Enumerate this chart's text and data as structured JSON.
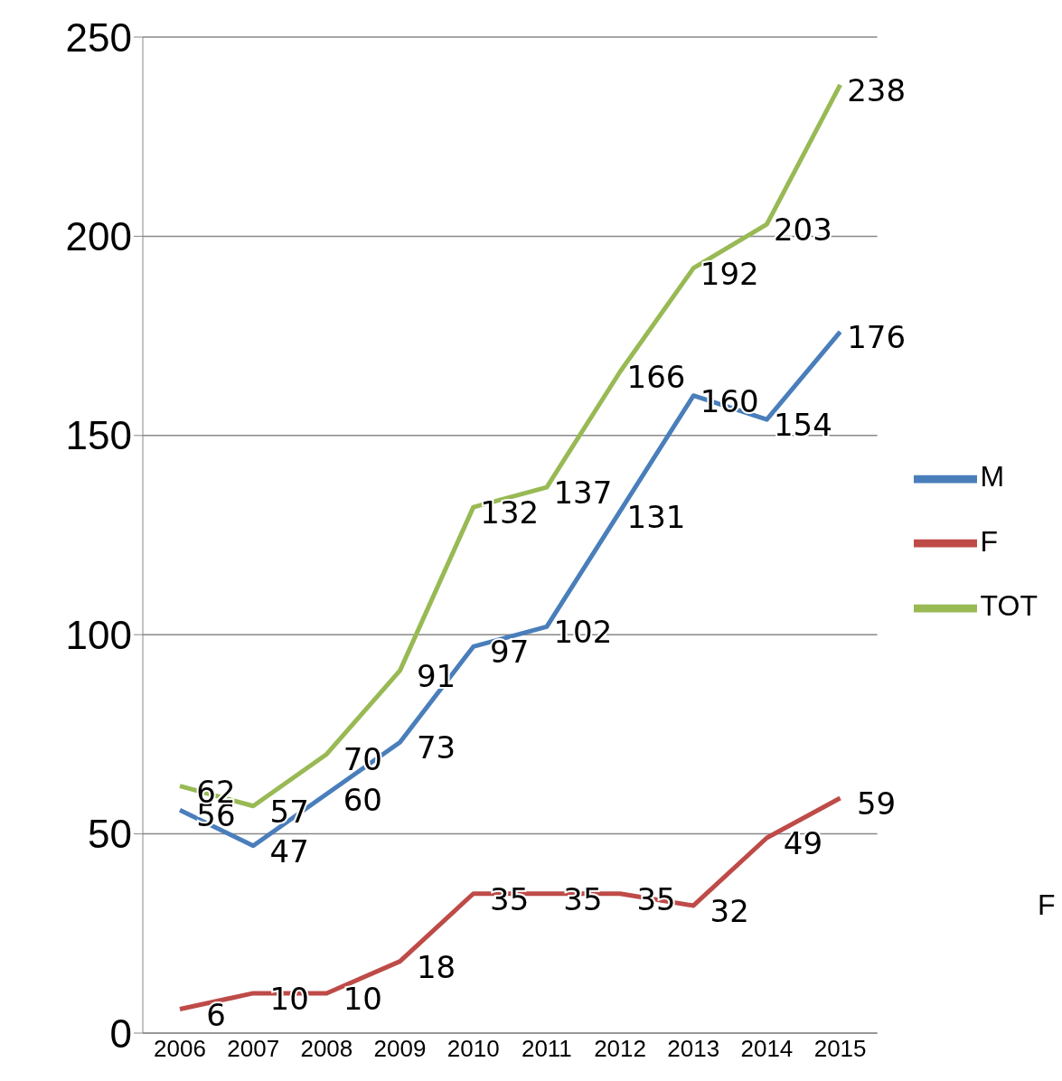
{
  "chart_data": {
    "type": "line",
    "categories": [
      "2006",
      "2007",
      "2008",
      "2009",
      "2010",
      "2011",
      "2012",
      "2013",
      "2014",
      "2015"
    ],
    "series": [
      {
        "name": "M",
        "color": "#4a7ebb",
        "values": [
          56,
          47,
          60,
          73,
          97,
          102,
          131,
          160,
          154,
          176
        ]
      },
      {
        "name": "F",
        "color": "#be4b48",
        "values": [
          6,
          10,
          10,
          18,
          35,
          35,
          35,
          32,
          49,
          59
        ]
      },
      {
        "name": "TOT",
        "color": "#98b954",
        "values": [
          62,
          57,
          70,
          91,
          132,
          137,
          166,
          192,
          203,
          238
        ]
      }
    ],
    "ylim": [
      0,
      250
    ],
    "yticks": [
      0,
      50,
      100,
      150,
      200,
      250
    ],
    "grid": "y",
    "legend": "right",
    "marker": "none",
    "line_style": "solid",
    "data_labels": true,
    "annotations": [
      "F"
    ]
  }
}
